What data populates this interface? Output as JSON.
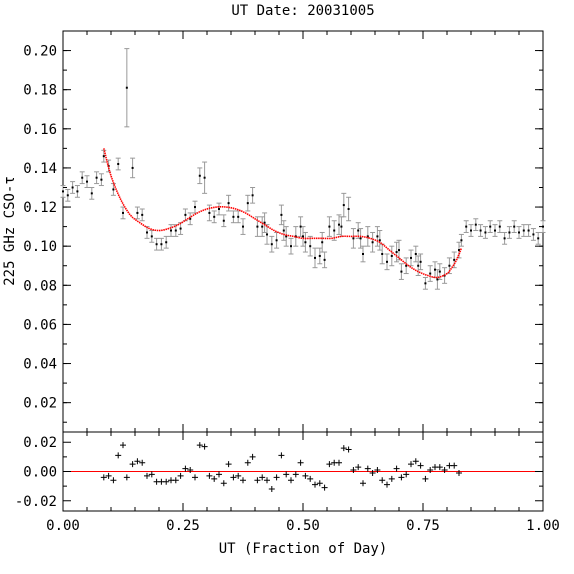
{
  "chart_data": {
    "type": "scatter",
    "title": "UT Date: 20031005",
    "xlabel": "UT (Fraction of Day)",
    "ylabel": "225 GHz CSO-τ",
    "xlim": [
      0,
      1
    ],
    "xticks": [
      "0.00",
      "0.25",
      "0.50",
      "0.75",
      "1.00"
    ],
    "top_panel": {
      "ylim": [
        0.005,
        0.21
      ],
      "yticks": [
        "0.02",
        "0.04",
        "0.06",
        "0.08",
        "0.10",
        "0.12",
        "0.14",
        "0.16",
        "0.18",
        "0.20"
      ],
      "series": [
        {
          "marker": "dot",
          "role": "all",
          "color": "#999999",
          "x": [
            0.0,
            0.01,
            0.02,
            0.03,
            0.04,
            0.05,
            0.06,
            0.07,
            0.08,
            0.42,
            0.46,
            0.5,
            0.54,
            0.58,
            0.62,
            0.66,
            0.7,
            0.74,
            0.78,
            0.83,
            0.84,
            0.85,
            0.86,
            0.87,
            0.88,
            0.89,
            0.9,
            0.91,
            0.92,
            0.93,
            0.94,
            0.95,
            0.96,
            0.97,
            0.98,
            0.99,
            1.0
          ],
          "y": [
            0.128,
            0.126,
            0.13,
            0.128,
            0.135,
            0.133,
            0.127,
            0.135,
            0.134,
            0.112,
            0.108,
            0.105,
            0.102,
            0.11,
            0.104,
            0.103,
            0.098,
            0.09,
            0.083,
            0.103,
            0.11,
            0.108,
            0.111,
            0.108,
            0.107,
            0.11,
            0.108,
            0.11,
            0.104,
            0.107,
            0.11,
            0.107,
            0.108,
            0.108,
            0.106,
            0.104,
            0.11
          ],
          "err": [
            0.003,
            0.003,
            0.003,
            0.003,
            0.003,
            0.003,
            0.003,
            0.003,
            0.003,
            0.005,
            0.005,
            0.005,
            0.005,
            0.005,
            0.005,
            0.005,
            0.005,
            0.005,
            0.005,
            0.003,
            0.003,
            0.003,
            0.003,
            0.003,
            0.003,
            0.003,
            0.003,
            0.003,
            0.003,
            0.003,
            0.003,
            0.003,
            0.003,
            0.003,
            0.003,
            0.003,
            0.003
          ]
        },
        {
          "marker": "dot",
          "role": "fit-window",
          "color": "#999999",
          "x": [
            0.085,
            0.095,
            0.105,
            0.115,
            0.125,
            0.133,
            0.145,
            0.155,
            0.165,
            0.175,
            0.185,
            0.195,
            0.205,
            0.215,
            0.225,
            0.235,
            0.245,
            0.255,
            0.265,
            0.275,
            0.285,
            0.295,
            0.305,
            0.315,
            0.325,
            0.335,
            0.345,
            0.355,
            0.365,
            0.375,
            0.385,
            0.395,
            0.405,
            0.415,
            0.425,
            0.435,
            0.445,
            0.455,
            0.465,
            0.475,
            0.485,
            0.495,
            0.505,
            0.515,
            0.525,
            0.535,
            0.545,
            0.555,
            0.565,
            0.575,
            0.585,
            0.595,
            0.605,
            0.615,
            0.625,
            0.635,
            0.645,
            0.655,
            0.665,
            0.675,
            0.685,
            0.695,
            0.705,
            0.715,
            0.725,
            0.735,
            0.745,
            0.755,
            0.765,
            0.775,
            0.785,
            0.795,
            0.805,
            0.815,
            0.825
          ],
          "y": [
            0.146,
            0.141,
            0.129,
            0.142,
            0.117,
            0.181,
            0.14,
            0.117,
            0.116,
            0.107,
            0.105,
            0.101,
            0.101,
            0.102,
            0.108,
            0.108,
            0.109,
            0.116,
            0.114,
            0.12,
            0.136,
            0.135,
            0.117,
            0.115,
            0.119,
            0.113,
            0.122,
            0.115,
            0.115,
            0.11,
            0.122,
            0.126,
            0.11,
            0.11,
            0.106,
            0.101,
            0.103,
            0.116,
            0.105,
            0.1,
            0.105,
            0.11,
            0.102,
            0.1,
            0.094,
            0.095,
            0.093,
            0.11,
            0.108,
            0.111,
            0.121,
            0.119,
            0.104,
            0.108,
            0.096,
            0.105,
            0.102,
            0.105,
            0.096,
            0.092,
            0.095,
            0.097,
            0.087,
            0.09,
            0.094,
            0.096,
            0.092,
            0.081,
            0.086,
            0.088,
            0.087,
            0.085,
            0.09,
            0.093,
            0.098
          ],
          "err": [
            0.003,
            0.003,
            0.003,
            0.003,
            0.003,
            0.02,
            0.005,
            0.003,
            0.003,
            0.003,
            0.003,
            0.003,
            0.003,
            0.003,
            0.003,
            0.003,
            0.003,
            0.003,
            0.003,
            0.003,
            0.004,
            0.008,
            0.004,
            0.003,
            0.003,
            0.003,
            0.004,
            0.003,
            0.003,
            0.004,
            0.004,
            0.004,
            0.005,
            0.005,
            0.005,
            0.004,
            0.004,
            0.005,
            0.005,
            0.004,
            0.005,
            0.005,
            0.005,
            0.005,
            0.005,
            0.004,
            0.004,
            0.005,
            0.005,
            0.005,
            0.006,
            0.006,
            0.005,
            0.004,
            0.004,
            0.005,
            0.005,
            0.005,
            0.005,
            0.004,
            0.005,
            0.005,
            0.004,
            0.004,
            0.004,
            0.004,
            0.004,
            0.003,
            0.004,
            0.004,
            0.004,
            0.004,
            0.004,
            0.004,
            0.004
          ]
        }
      ],
      "fit": {
        "color": "#ff0000",
        "x": [
          0.085,
          0.1,
          0.12,
          0.14,
          0.16,
          0.18,
          0.2,
          0.22,
          0.24,
          0.26,
          0.28,
          0.3,
          0.32,
          0.34,
          0.36,
          0.38,
          0.4,
          0.42,
          0.44,
          0.46,
          0.48,
          0.5,
          0.52,
          0.54,
          0.56,
          0.58,
          0.6,
          0.62,
          0.64,
          0.66,
          0.68,
          0.7,
          0.72,
          0.74,
          0.76,
          0.78,
          0.8,
          0.81,
          0.82,
          0.83
        ],
        "y": [
          0.15,
          0.136,
          0.124,
          0.116,
          0.112,
          0.109,
          0.108,
          0.109,
          0.111,
          0.114,
          0.117,
          0.119,
          0.12,
          0.12,
          0.119,
          0.117,
          0.114,
          0.111,
          0.108,
          0.106,
          0.105,
          0.104,
          0.104,
          0.104,
          0.104,
          0.105,
          0.105,
          0.105,
          0.104,
          0.102,
          0.098,
          0.094,
          0.09,
          0.087,
          0.085,
          0.084,
          0.086,
          0.089,
          0.093,
          0.099
        ]
      }
    },
    "bottom_panel": {
      "ylim": [
        -0.027,
        0.027
      ],
      "yticks": [
        "0.02",
        "0.00",
        "-0.02"
      ],
      "baseline": 0.0,
      "baseline_color": "#ff0000",
      "marker": "plus",
      "x": [
        0.085,
        0.095,
        0.105,
        0.115,
        0.125,
        0.133,
        0.145,
        0.155,
        0.165,
        0.175,
        0.185,
        0.195,
        0.205,
        0.215,
        0.225,
        0.235,
        0.245,
        0.255,
        0.265,
        0.275,
        0.285,
        0.295,
        0.305,
        0.315,
        0.325,
        0.335,
        0.345,
        0.355,
        0.365,
        0.375,
        0.385,
        0.395,
        0.405,
        0.415,
        0.425,
        0.435,
        0.445,
        0.455,
        0.465,
        0.475,
        0.485,
        0.495,
        0.505,
        0.515,
        0.525,
        0.535,
        0.545,
        0.555,
        0.565,
        0.575,
        0.585,
        0.595,
        0.605,
        0.615,
        0.625,
        0.635,
        0.645,
        0.655,
        0.665,
        0.675,
        0.685,
        0.695,
        0.705,
        0.715,
        0.725,
        0.735,
        0.745,
        0.755,
        0.765,
        0.775,
        0.785,
        0.795,
        0.805,
        0.815,
        0.825
      ],
      "y": [
        -0.004,
        -0.003,
        -0.006,
        0.011,
        0.018,
        -0.004,
        0.005,
        0.007,
        0.006,
        -0.003,
        -0.002,
        -0.007,
        -0.007,
        -0.007,
        -0.006,
        -0.006,
        -0.003,
        0.002,
        0.001,
        -0.004,
        0.018,
        0.017,
        -0.003,
        -0.005,
        -0.002,
        -0.008,
        0.005,
        -0.004,
        -0.003,
        -0.006,
        0.006,
        0.01,
        -0.006,
        -0.004,
        -0.006,
        -0.012,
        -0.004,
        0.011,
        -0.002,
        -0.006,
        -0.002,
        0.006,
        -0.003,
        -0.005,
        -0.009,
        -0.008,
        -0.011,
        0.005,
        0.006,
        0.006,
        0.016,
        0.015,
        0.001,
        0.003,
        -0.008,
        0.002,
        -0.001,
        0.001,
        -0.006,
        -0.009,
        -0.005,
        0.002,
        -0.004,
        -0.002,
        0.005,
        0.007,
        0.004,
        -0.005,
        0.001,
        0.003,
        0.003,
        0.001,
        0.004,
        0.004,
        -0.001
      ]
    }
  }
}
